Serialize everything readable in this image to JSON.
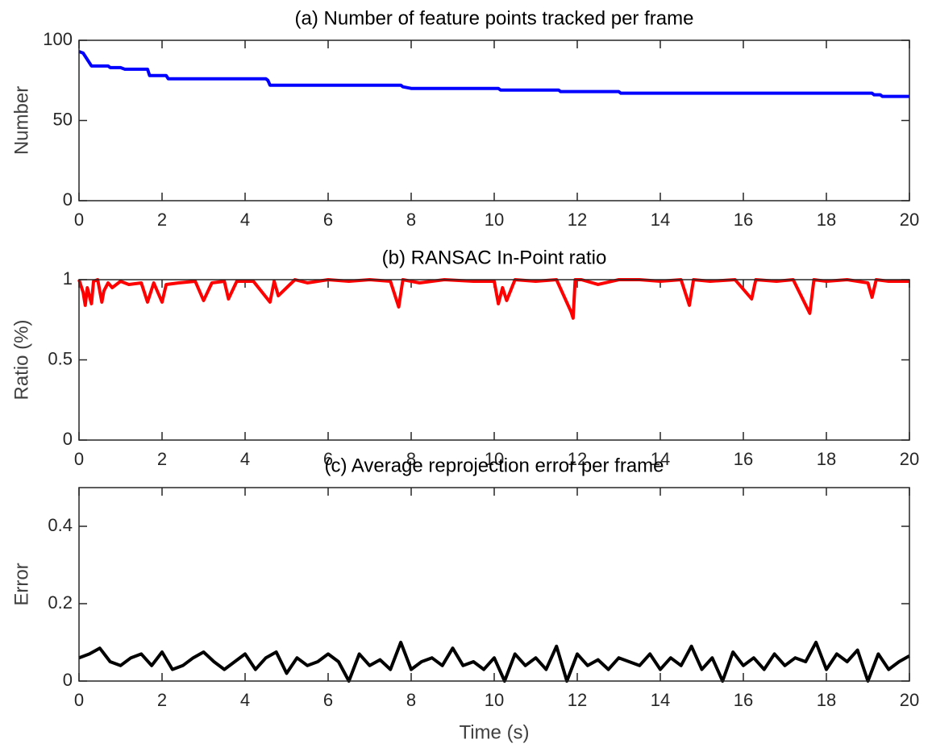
{
  "chart_data": [
    {
      "type": "line",
      "title": "(a) Number of feature points tracked per frame",
      "y_label": "Number",
      "xlim": [
        0,
        20
      ],
      "xticks": [
        0,
        2,
        4,
        6,
        8,
        10,
        12,
        14,
        16,
        18,
        20
      ],
      "ylim": [
        0,
        100
      ],
      "yticks": [
        0,
        50,
        100
      ],
      "series": [
        {
          "color": "#0000ff",
          "x": [
            0,
            0.1,
            0.2,
            0.3,
            0.7,
            0.75,
            1.0,
            1.1,
            1.65,
            1.7,
            2.1,
            2.15,
            4.5,
            4.55,
            4.6,
            7.75,
            7.8,
            8.0,
            10.1,
            10.15,
            11.55,
            11.6,
            13.0,
            13.05,
            19.1,
            19.15,
            19.3,
            19.35,
            20
          ],
          "values": [
            93,
            92,
            88,
            84,
            84,
            83,
            83,
            82,
            82,
            78,
            78,
            76,
            76,
            75,
            72,
            72,
            71,
            70,
            70,
            69,
            69,
            68,
            68,
            67,
            67,
            66,
            66,
            65,
            65
          ]
        }
      ]
    },
    {
      "type": "line",
      "title": "(b) RANSAC In-Point ratio",
      "y_label": "Ratio (%)",
      "xlim": [
        0,
        20
      ],
      "xticks": [
        0,
        2,
        4,
        6,
        8,
        10,
        12,
        14,
        16,
        18,
        20
      ],
      "ylim": [
        0,
        1
      ],
      "yticks": [
        0,
        0.5,
        1
      ],
      "series": [
        {
          "color": "#ff0000",
          "x": [
            0,
            0.1,
            0.15,
            0.2,
            0.3,
            0.35,
            0.45,
            0.55,
            0.6,
            0.7,
            0.8,
            1.0,
            1.2,
            1.5,
            1.65,
            1.8,
            2.0,
            2.1,
            2.4,
            2.8,
            3.0,
            3.2,
            3.5,
            3.6,
            3.8,
            4.2,
            4.6,
            4.7,
            4.8,
            5.2,
            5.5,
            6.0,
            6.5,
            7.0,
            7.5,
            7.7,
            7.8,
            8.2,
            8.8,
            9.5,
            10.0,
            10.1,
            10.2,
            10.3,
            10.5,
            11.0,
            11.5,
            11.85,
            11.9,
            11.95,
            12.1,
            12.5,
            13.0,
            13.5,
            14.0,
            14.5,
            14.7,
            14.8,
            15.2,
            15.8,
            16.2,
            16.3,
            16.8,
            17.2,
            17.6,
            17.7,
            18.0,
            18.5,
            19.0,
            19.1,
            19.2,
            19.5,
            20
          ],
          "values": [
            1,
            0.92,
            0.84,
            0.95,
            0.85,
            0.99,
            1,
            0.86,
            0.93,
            0.98,
            0.95,
            0.99,
            0.97,
            0.98,
            0.86,
            0.98,
            0.86,
            0.97,
            0.98,
            0.99,
            0.87,
            0.98,
            0.99,
            0.88,
            0.99,
            0.99,
            0.86,
            0.99,
            0.9,
            1,
            0.98,
            1,
            0.99,
            1,
            0.99,
            0.83,
            1,
            0.98,
            1,
            0.99,
            0.99,
            0.85,
            0.95,
            0.87,
            1,
            0.99,
            1,
            0.8,
            0.76,
            1,
            1,
            0.97,
            1,
            1,
            0.99,
            1,
            0.84,
            1,
            0.99,
            1,
            0.88,
            1,
            0.99,
            1,
            0.79,
            1,
            0.99,
            1,
            0.98,
            0.89,
            1,
            0.99,
            0.99
          ]
        }
      ]
    },
    {
      "type": "line",
      "title": "(c) Average reprojection error per frame",
      "y_label": "Error",
      "x_label": "Time (s)",
      "xlim": [
        0,
        20
      ],
      "xticks": [
        0,
        2,
        4,
        6,
        8,
        10,
        12,
        14,
        16,
        18,
        20
      ],
      "ylim": [
        0,
        0.5
      ],
      "yticks": [
        0,
        0.2,
        0.4
      ],
      "series": [
        {
          "color": "#000000",
          "x": [
            0,
            0.25,
            0.5,
            0.75,
            1,
            1.25,
            1.5,
            1.75,
            2,
            2.25,
            2.5,
            2.75,
            3,
            3.25,
            3.5,
            3.75,
            4,
            4.25,
            4.5,
            4.75,
            5,
            5.25,
            5.5,
            5.75,
            6,
            6.25,
            6.5,
            6.75,
            7,
            7.25,
            7.5,
            7.75,
            8,
            8.25,
            8.5,
            8.75,
            9,
            9.25,
            9.5,
            9.75,
            10,
            10.25,
            10.5,
            10.75,
            11,
            11.25,
            11.5,
            11.75,
            12,
            12.25,
            12.5,
            12.75,
            13,
            13.25,
            13.5,
            13.75,
            14,
            14.25,
            14.5,
            14.75,
            15,
            15.25,
            15.5,
            15.75,
            16,
            16.25,
            16.5,
            16.75,
            17,
            17.25,
            17.5,
            17.75,
            18,
            18.25,
            18.5,
            18.75,
            19,
            19.25,
            19.5,
            19.75,
            20
          ],
          "values": [
            0.06,
            0.07,
            0.085,
            0.05,
            0.04,
            0.06,
            0.07,
            0.04,
            0.075,
            0.03,
            0.04,
            0.06,
            0.075,
            0.05,
            0.03,
            0.05,
            0.07,
            0.03,
            0.06,
            0.075,
            0.02,
            0.06,
            0.04,
            0.05,
            0.07,
            0.05,
            0,
            0.07,
            0.04,
            0.055,
            0.03,
            0.1,
            0.03,
            0.05,
            0.06,
            0.04,
            0.085,
            0.04,
            0.05,
            0.03,
            0.06,
            0,
            0.07,
            0.04,
            0.06,
            0.03,
            0.09,
            0,
            0.07,
            0.04,
            0.055,
            0.03,
            0.06,
            0.05,
            0.04,
            0.07,
            0.03,
            0.06,
            0.04,
            0.09,
            0.03,
            0.06,
            0,
            0.075,
            0.04,
            0.06,
            0.03,
            0.07,
            0.04,
            0.06,
            0.05,
            0.1,
            0.03,
            0.07,
            0.05,
            0.08,
            0,
            0.07,
            0.03,
            0.05,
            0.065
          ]
        }
      ]
    }
  ]
}
